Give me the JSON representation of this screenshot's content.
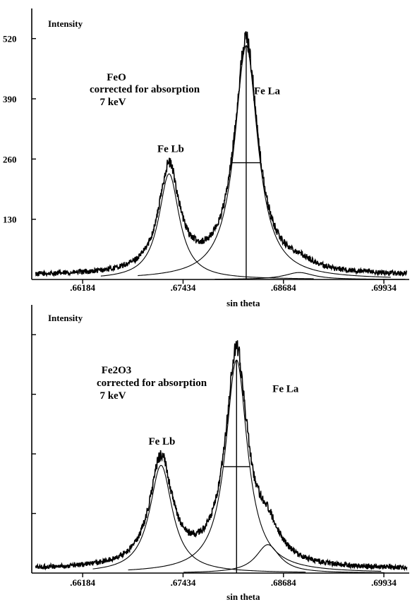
{
  "chart_data": [
    {
      "type": "line",
      "title": "",
      "annotation": [
        "FeO",
        "corrected for absorption",
        "7 keV"
      ],
      "ylabel": "Intensity",
      "xlabel": "sin theta",
      "xlim": [
        0.6555,
        0.7025
      ],
      "ylim": [
        0,
        585
      ],
      "x_ticks": [
        0.66184,
        0.67434,
        0.68684,
        0.69934
      ],
      "x_tick_labels": [
        ".66184",
        ".67434",
        ".68684",
        ".69934"
      ],
      "y_ticks": [
        130,
        260,
        390,
        520
      ],
      "y_tick_labels": [
        "130",
        "260",
        "390",
        "520"
      ],
      "peak_labels": [
        {
          "text": "Fe Lb",
          "x": 0.6728,
          "y": 275
        },
        {
          "text": "Fe La",
          "x": 0.6848,
          "y": 400
        }
      ],
      "peaks": [
        {
          "name": "Fe Lb",
          "center": 0.6726,
          "height": 228,
          "hwhm": 0.00155
        },
        {
          "name": "Fe La",
          "center": 0.6822,
          "height": 505,
          "hwhm": 0.00175
        },
        {
          "name": "satellite",
          "center": 0.6888,
          "height": 15,
          "hwhm": 0.0022
        }
      ],
      "background": 8,
      "fwhm_marker": {
        "x": 0.6822,
        "y_top": 505,
        "half": 252,
        "x_left": 0.68045,
        "x_right": 0.68395
      }
    },
    {
      "type": "line",
      "title": "",
      "annotation": [
        "Fe2O3",
        "corrected for absorption",
        "7 keV"
      ],
      "ylabel": "Intensity",
      "xlabel": "sin theta",
      "xlim": [
        0.6555,
        0.7025
      ],
      "ylim": [
        0,
        585
      ],
      "x_ticks": [
        0.66184,
        0.67434,
        0.68684,
        0.69934
      ],
      "x_tick_labels": [
        ".66184",
        ".67434",
        ".68684",
        ".69934"
      ],
      "y_ticks": [
        130,
        260,
        390,
        520
      ],
      "y_tick_labels": [
        "",
        "",
        "",
        ""
      ],
      "peak_labels": [
        {
          "text": "Fe Lb",
          "x": 0.6717,
          "y": 280
        },
        {
          "text": "Fe La",
          "x": 0.6871,
          "y": 395
        }
      ],
      "peaks": [
        {
          "name": "Fe Lb",
          "center": 0.6716,
          "height": 235,
          "hwhm": 0.0017
        },
        {
          "name": "Fe La",
          "center": 0.681,
          "height": 465,
          "hwhm": 0.00165
        },
        {
          "name": "satellite",
          "center": 0.6849,
          "height": 62,
          "hwhm": 0.0018
        }
      ],
      "background": 8,
      "fwhm_marker": {
        "x": 0.681,
        "y_top": 465,
        "half": 232,
        "x_left": 0.67935,
        "x_right": 0.68265
      }
    }
  ]
}
